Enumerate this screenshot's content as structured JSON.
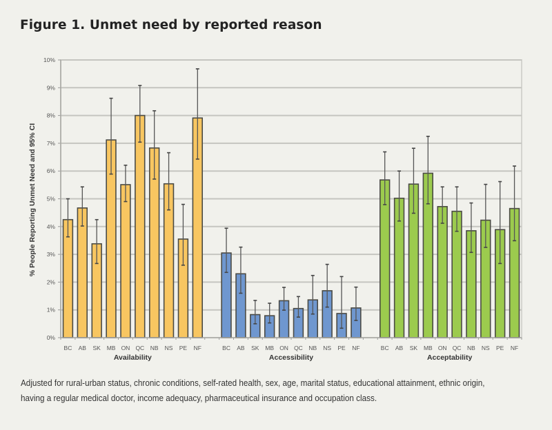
{
  "title": "Figure 1. Unmet need by reported reason",
  "caption_lines": [
    "Adjusted for rural-urban status, chronic conditions, self-rated health, sex, age, marital status, educational attainment, ethnic origin,",
    "having a regular medical doctor, income adequacy, pharmaceutical insurance and occupation class."
  ],
  "chart_data": {
    "type": "bar",
    "title": "Unmet need by reported reason",
    "xlabel": "",
    "ylabel": "% People Reporting Unmet Need and 95% CI",
    "ylim": [
      0,
      10
    ],
    "yticks": [
      "0%",
      "1%",
      "2%",
      "3%",
      "4%",
      "5%",
      "6%",
      "7%",
      "8%",
      "9%",
      "10%"
    ],
    "grid": true,
    "categories": [
      "BC",
      "AB",
      "SK",
      "MB",
      "ON",
      "QC",
      "NB",
      "NS",
      "PE",
      "NF"
    ],
    "series": [
      {
        "name": "Availability",
        "color": "#f8c661",
        "values": [
          4.25,
          4.67,
          3.38,
          7.12,
          5.51,
          8.0,
          6.83,
          5.54,
          3.55,
          7.91
        ],
        "ci_low": [
          3.63,
          4.02,
          2.67,
          5.89,
          4.9,
          7.04,
          5.71,
          4.6,
          2.61,
          6.43
        ],
        "ci_high": [
          5.0,
          5.43,
          4.25,
          8.62,
          6.21,
          9.08,
          8.17,
          6.66,
          4.8,
          9.68
        ]
      },
      {
        "name": "Accessibility",
        "color": "#6f97cf",
        "values": [
          3.05,
          2.3,
          0.83,
          0.79,
          1.33,
          1.05,
          1.36,
          1.69,
          0.87,
          1.07
        ],
        "ci_low": [
          2.35,
          1.6,
          0.5,
          0.53,
          0.99,
          0.74,
          0.85,
          1.1,
          0.34,
          0.62
        ],
        "ci_high": [
          3.94,
          3.26,
          1.34,
          1.24,
          1.81,
          1.48,
          2.24,
          2.64,
          2.2,
          1.82
        ]
      },
      {
        "name": "Acceptability",
        "color": "#9ccb4e",
        "values": [
          5.68,
          5.02,
          5.53,
          5.92,
          4.72,
          4.55,
          3.85,
          4.23,
          3.89,
          4.65
        ],
        "ci_low": [
          4.79,
          4.2,
          4.48,
          4.82,
          4.12,
          3.83,
          3.07,
          3.25,
          2.67,
          3.49
        ],
        "ci_high": [
          6.69,
          6.0,
          6.82,
          7.25,
          5.43,
          5.43,
          4.85,
          5.52,
          5.62,
          6.18
        ]
      }
    ]
  }
}
